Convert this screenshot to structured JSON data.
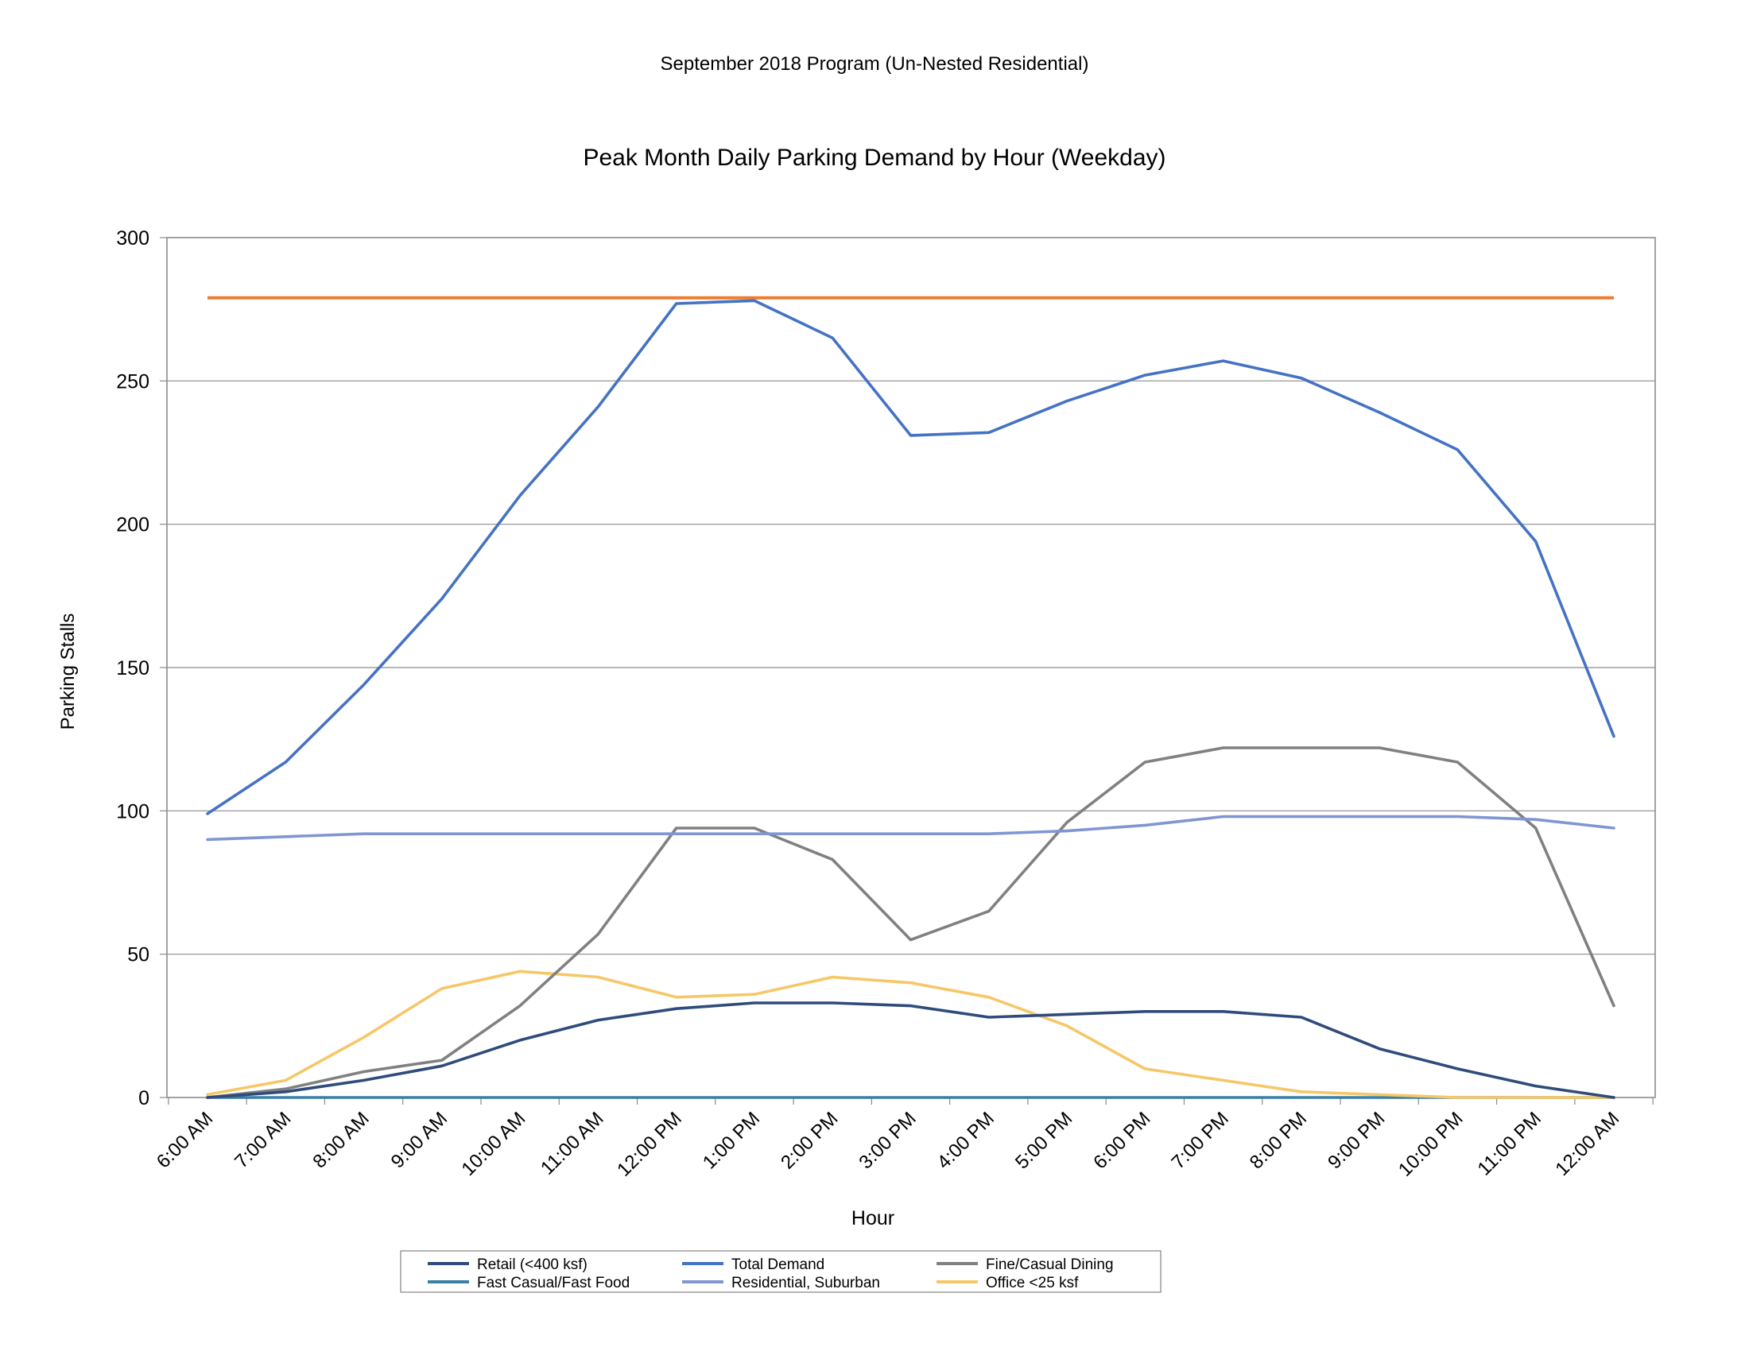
{
  "chart_data": {
    "type": "line",
    "subtitle": "September 2018 Program (Un-Nested Residential)",
    "title": "Peak Month Daily Parking Demand by Hour (Weekday)",
    "xlabel": "Hour",
    "ylabel": "Parking Stalls",
    "ylim": [
      0,
      300
    ],
    "yticks": [
      0,
      50,
      100,
      150,
      200,
      250,
      300
    ],
    "grid": true,
    "legend_position": "bottom",
    "categories": [
      "6:00 AM",
      "7:00 AM",
      "8:00 AM",
      "9:00 AM",
      "10:00 AM",
      "11:00 AM",
      "12:00 PM",
      "1:00 PM",
      "2:00 PM",
      "3:00 PM",
      "4:00 PM",
      "5:00 PM",
      "6:00 PM",
      "7:00 PM",
      "8:00 PM",
      "9:00 PM",
      "10:00 PM",
      "11:00 PM",
      "12:00 AM"
    ],
    "capacity_line": {
      "value": 279,
      "color": "#ED7D31"
    },
    "series": [
      {
        "name": "Retail (<400 ksf)",
        "color": "#2F4B7C",
        "values": [
          0,
          2,
          6,
          11,
          20,
          27,
          31,
          33,
          33,
          32,
          28,
          29,
          30,
          30,
          28,
          17,
          10,
          4,
          0
        ]
      },
      {
        "name": "Total Demand",
        "color": "#4472C4",
        "values": [
          99,
          117,
          144,
          174,
          210,
          241,
          277,
          278,
          265,
          231,
          232,
          243,
          252,
          257,
          251,
          239,
          226,
          194,
          126
        ]
      },
      {
        "name": "Fine/Casual Dining",
        "color": "#808080",
        "values": [
          0,
          3,
          9,
          13,
          32,
          57,
          94,
          94,
          83,
          55,
          65,
          96,
          117,
          122,
          122,
          122,
          117,
          94,
          32
        ]
      },
      {
        "name": "Fast Casual/Fast Food",
        "color": "#3A7FA6",
        "values": [
          0,
          0,
          0,
          0,
          0,
          0,
          0,
          0,
          0,
          0,
          0,
          0,
          0,
          0,
          0,
          0,
          0,
          0,
          0
        ]
      },
      {
        "name": "Residential, Suburban",
        "color": "#7F96D3",
        "values": [
          90,
          91,
          92,
          92,
          92,
          92,
          92,
          92,
          92,
          92,
          92,
          93,
          95,
          98,
          98,
          98,
          98,
          97,
          94
        ]
      },
      {
        "name": "Office <25 ksf",
        "color": "#F6C767",
        "values": [
          1,
          6,
          21,
          38,
          44,
          42,
          35,
          36,
          42,
          40,
          35,
          25,
          10,
          6,
          2,
          1,
          0,
          0,
          0
        ]
      }
    ]
  }
}
